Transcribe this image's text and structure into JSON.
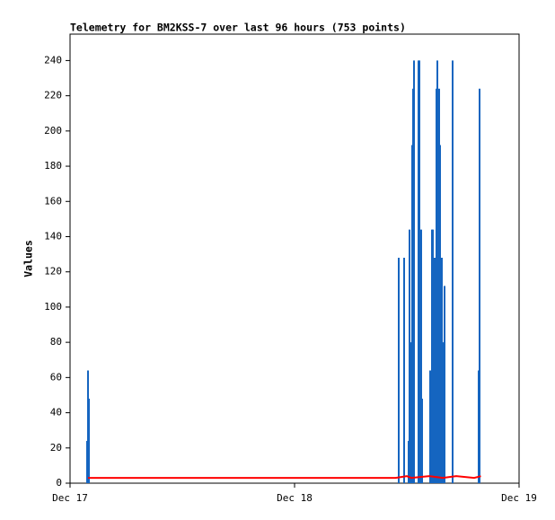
{
  "chart_data": {
    "type": "telemetry",
    "title": "Telemetry for BM2KSS-7 over last 96 hours (753 points)",
    "y_label": "Values",
    "xlim": [
      0,
      2
    ],
    "xticks": [
      {
        "value": 0,
        "label": "Dec 17"
      },
      {
        "value": 1,
        "label": "Dec 18"
      },
      {
        "value": 2,
        "label": "Dec 19"
      }
    ],
    "ylim": [
      0,
      255
    ],
    "yticks": [
      0,
      20,
      40,
      60,
      80,
      100,
      120,
      140,
      160,
      180,
      200,
      220,
      240
    ],
    "series": [
      {
        "kind": "spikes",
        "color": "#1565c0",
        "x": [
          0.076,
          0.08,
          0.084,
          1.464,
          1.488,
          1.508,
          1.512,
          1.52,
          1.524,
          1.528,
          1.532,
          1.552,
          1.556,
          1.564,
          1.568,
          1.604,
          1.612,
          1.616,
          1.624,
          1.632,
          1.636,
          1.64,
          1.644,
          1.648,
          1.656,
          1.66,
          1.668,
          1.704,
          1.82,
          1.824
        ],
        "values": [
          24,
          64,
          48,
          128,
          128,
          24,
          144,
          80,
          192,
          224,
          240,
          240,
          240,
          144,
          48,
          64,
          144,
          144,
          128,
          224,
          240,
          160,
          224,
          192,
          128,
          80,
          112,
          240,
          64,
          224
        ]
      },
      {
        "kind": "line",
        "color": "#ff0000",
        "x": [
          0.08,
          1.45,
          1.5,
          1.52,
          1.6,
          1.66,
          1.72,
          1.8,
          1.83
        ],
        "values": [
          3,
          3,
          4,
          3,
          4,
          3,
          4,
          3,
          4
        ]
      }
    ]
  }
}
